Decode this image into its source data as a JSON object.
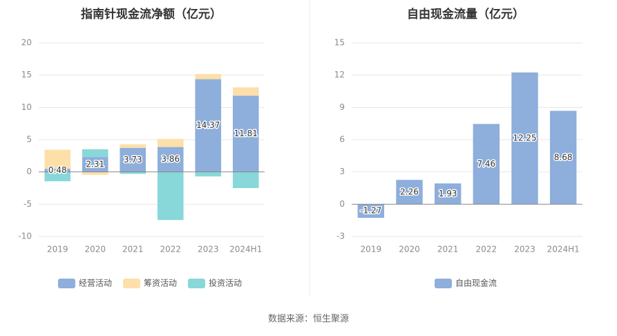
{
  "chart_data": [
    {
      "type": "bar",
      "stacked": true,
      "title": "指南针现金流净额（亿元）",
      "categories": [
        "2019",
        "2020",
        "2021",
        "2022",
        "2023",
        "2024H1"
      ],
      "ylim": [
        -10,
        20
      ],
      "yticks": [
        20,
        15,
        10,
        5,
        0,
        -5,
        -10
      ],
      "grid": true,
      "legend_position": "bottom",
      "series": [
        {
          "name": "经营活动",
          "color": "#8eaedb",
          "values": [
            0.48,
            2.31,
            3.73,
            3.86,
            14.37,
            11.81
          ],
          "labels": [
            "0.48",
            "2.31",
            "3.73",
            "3.86",
            "14.37",
            "11.81"
          ]
        },
        {
          "name": "筹资活动",
          "color": "#fddfa9",
          "values": [
            2.95,
            -0.45,
            0.55,
            1.25,
            0.8,
            1.3
          ]
        },
        {
          "name": "投资活动",
          "color": "#88d7d9",
          "values": [
            -1.45,
            1.2,
            -0.3,
            -7.45,
            -0.7,
            -2.5
          ]
        }
      ]
    },
    {
      "type": "bar",
      "title": "自由现金流量（亿元）",
      "categories": [
        "2019",
        "2020",
        "2021",
        "2022",
        "2023",
        "2024H1"
      ],
      "ylim": [
        -3,
        15
      ],
      "yticks": [
        15,
        12,
        9,
        6,
        3,
        0,
        -3
      ],
      "grid": true,
      "legend_position": "bottom",
      "series": [
        {
          "name": "自由现金流",
          "color": "#8eaedb",
          "values": [
            -1.27,
            2.26,
            1.93,
            7.46,
            12.25,
            8.68
          ],
          "labels": [
            "-1.27",
            "2.26",
            "1.93",
            "7.46",
            "12.25",
            "8.68"
          ]
        }
      ]
    }
  ],
  "footer": {
    "source": "数据来源：恒生聚源"
  }
}
